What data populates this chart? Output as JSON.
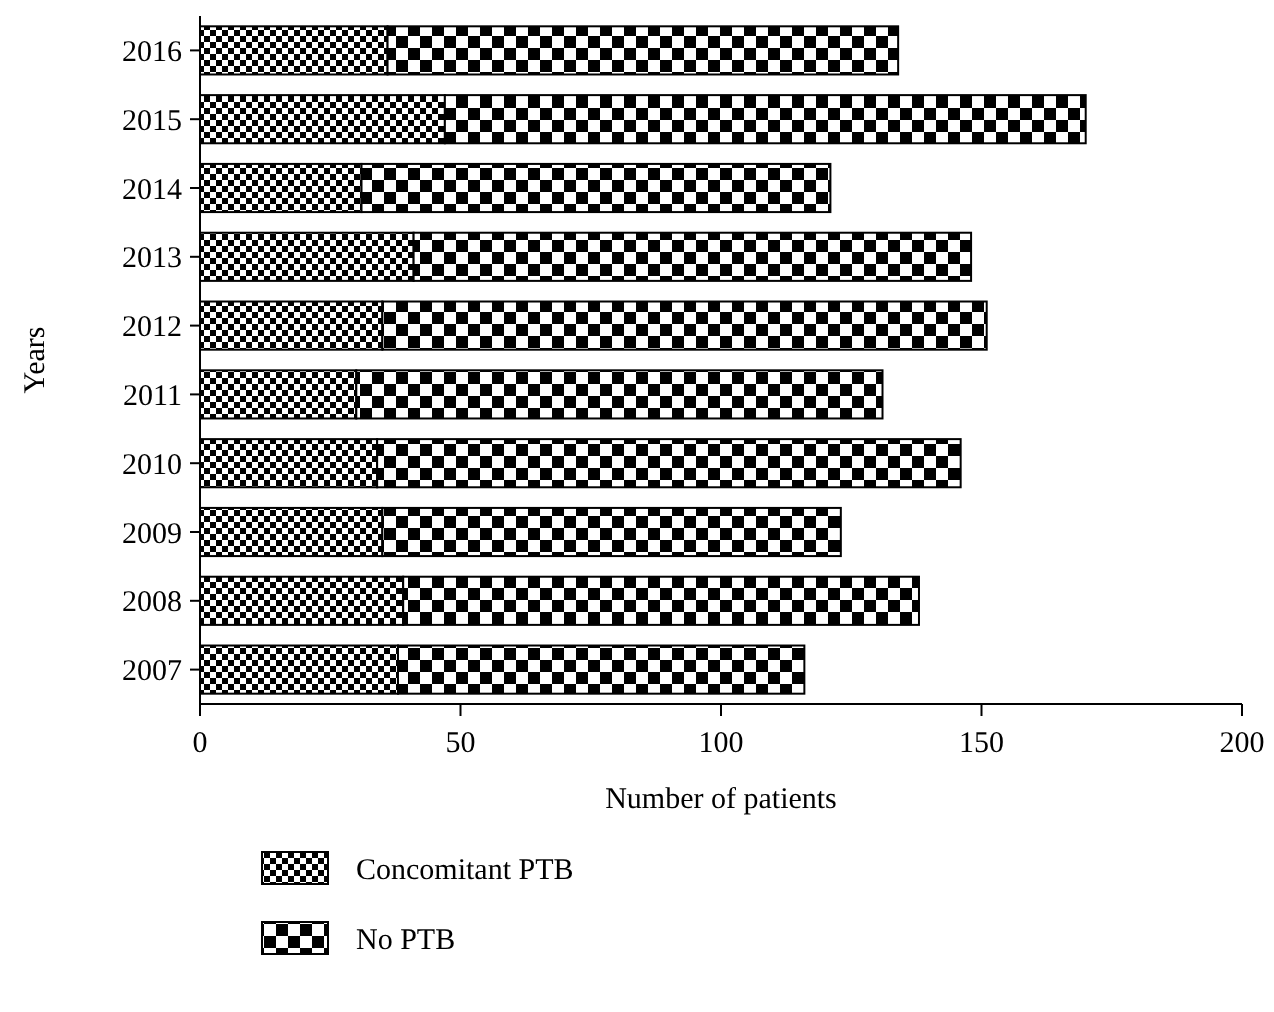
{
  "chart_data": {
    "type": "bar",
    "orientation": "horizontal",
    "stacked": true,
    "xlabel": "Number of patients",
    "ylabel": "Years",
    "categories": [
      "2016",
      "2015",
      "2014",
      "2013",
      "2012",
      "2011",
      "2010",
      "2009",
      "2008",
      "2007"
    ],
    "series": [
      {
        "name": "Concomitant PTB",
        "color": "#000000",
        "values": [
          36,
          47,
          31,
          41,
          35,
          30,
          34,
          35,
          39,
          38
        ]
      },
      {
        "name": "No PTB",
        "color": "#000000",
        "values": [
          98,
          123,
          90,
          107,
          116,
          101,
          112,
          88,
          99,
          78
        ]
      }
    ],
    "xlim": [
      0,
      200
    ],
    "xticks": [
      0,
      50,
      100,
      150,
      200
    ],
    "legend": "bottom",
    "grid": false
  }
}
